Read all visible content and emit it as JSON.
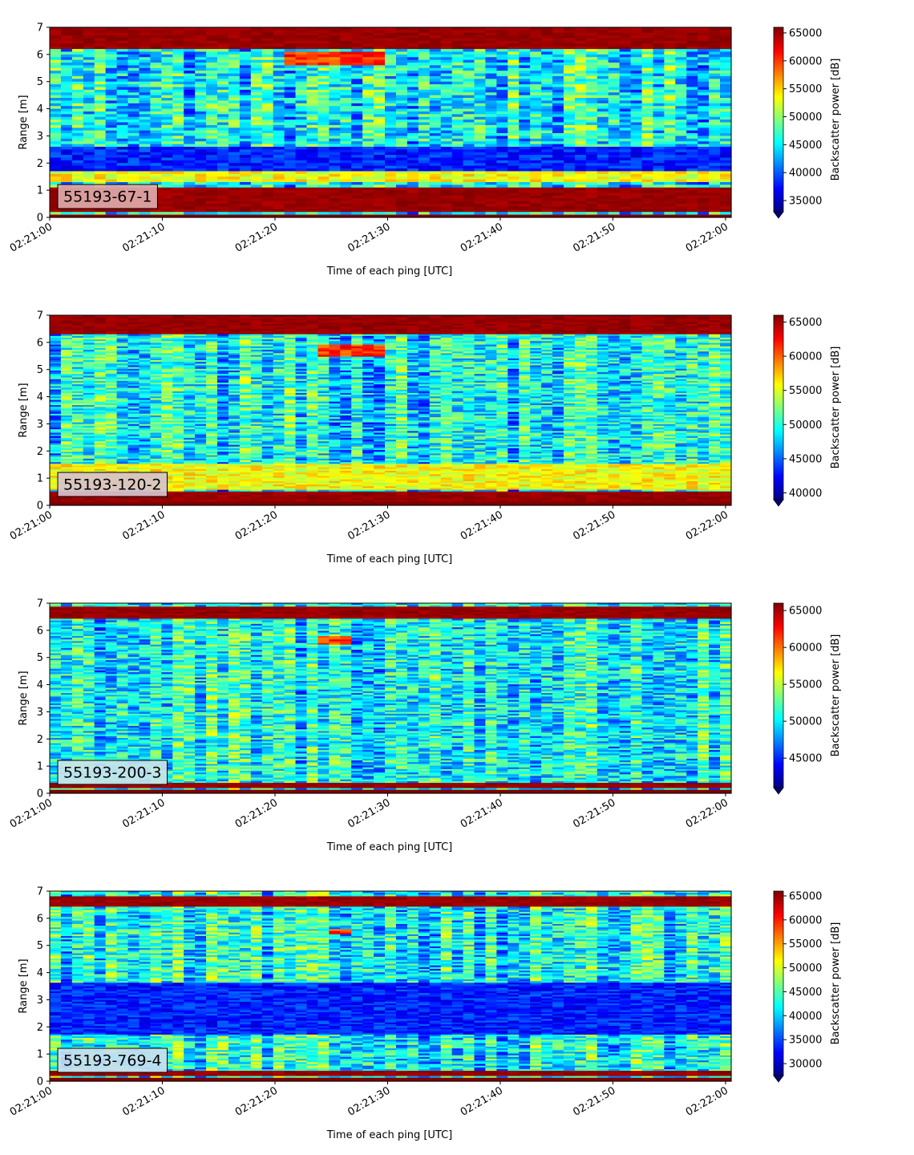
{
  "chart_data": [
    {
      "type": "heatmap",
      "label": "55193-67-1",
      "xlabel": "Time of each ping [UTC]",
      "ylabel": "Range [m]",
      "x_ticks": [
        "02:21:00",
        "02:21:10",
        "02:21:20",
        "02:21:30",
        "02:21:40",
        "02:21:50",
        "02:22:00"
      ],
      "xlim": [
        0,
        60.5
      ],
      "y_ticks": [
        0,
        1,
        2,
        3,
        4,
        5,
        6,
        7
      ],
      "ylim": [
        0,
        7
      ],
      "colorbar": {
        "label": "Backscatter power [dB]",
        "ticks": [
          35000,
          40000,
          45000,
          50000,
          55000,
          60000,
          65000
        ],
        "range": [
          33000,
          66000
        ],
        "extend": "min",
        "colormap": "jet"
      },
      "label_box_color": "#e0a9a9",
      "features": [
        {
          "range_m": [
            0.2,
            1.1
          ],
          "level": "max"
        },
        {
          "range_m": [
            6.2,
            7.0
          ],
          "level": "max"
        },
        {
          "range_m": [
            1.3,
            1.9
          ],
          "level": "mid-high"
        },
        {
          "range_m": [
            1.7,
            2.6
          ],
          "level": "min"
        },
        {
          "range_m": [
            5.6,
            6.1
          ],
          "t_s": [
            21,
            30
          ],
          "level": "high"
        }
      ]
    },
    {
      "type": "heatmap",
      "label": "55193-120-2",
      "xlabel": "Time of each ping [UTC]",
      "ylabel": "Range [m]",
      "x_ticks": [
        "02:21:00",
        "02:21:10",
        "02:21:20",
        "02:21:30",
        "02:21:40",
        "02:21:50",
        "02:22:00"
      ],
      "xlim": [
        0,
        60.5
      ],
      "y_ticks": [
        0,
        1,
        2,
        3,
        4,
        5,
        6,
        7
      ],
      "ylim": [
        0,
        7
      ],
      "colorbar": {
        "label": "Backscatter power [dB]",
        "ticks": [
          40000,
          45000,
          50000,
          55000,
          60000,
          65000
        ],
        "range": [
          39000,
          66000
        ],
        "extend": "min",
        "colormap": "jet"
      },
      "label_box_color": "#d8c2cc",
      "features": [
        {
          "range_m": [
            0.1,
            0.5
          ],
          "level": "max"
        },
        {
          "range_m": [
            6.3,
            7.0
          ],
          "level": "max"
        },
        {
          "range_m": [
            0.6,
            1.5
          ],
          "level": "mid-high"
        },
        {
          "range_m": [
            5.5,
            5.9
          ],
          "t_s": [
            24,
            30
          ],
          "level": "high"
        }
      ]
    },
    {
      "type": "heatmap",
      "label": "55193-200-3",
      "xlabel": "Time of each ping [UTC]",
      "ylabel": "Range [m]",
      "x_ticks": [
        "02:21:00",
        "02:21:10",
        "02:21:20",
        "02:21:30",
        "02:21:40",
        "02:21:50",
        "02:22:00"
      ],
      "xlim": [
        0,
        60.5
      ],
      "y_ticks": [
        0,
        1,
        2,
        3,
        4,
        5,
        6,
        7
      ],
      "ylim": [
        0,
        7
      ],
      "colorbar": {
        "label": "Backscatter power [dB]",
        "ticks": [
          45000,
          50000,
          55000,
          60000,
          65000
        ],
        "range": [
          41000,
          66000
        ],
        "extend": "min",
        "colormap": "jet"
      },
      "label_box_color": "#c8e4ea",
      "features": [
        {
          "range_m": [
            0.2,
            0.4
          ],
          "level": "max"
        },
        {
          "range_m": [
            6.4,
            6.9
          ],
          "level": "max"
        },
        {
          "range_m": [
            5.5,
            5.8
          ],
          "t_s": [
            24,
            27
          ],
          "level": "high"
        }
      ]
    },
    {
      "type": "heatmap",
      "label": "55193-769-4",
      "xlabel": "Time of each ping [UTC]",
      "ylabel": "Range [m]",
      "x_ticks": [
        "02:21:00",
        "02:21:10",
        "02:21:20",
        "02:21:30",
        "02:21:40",
        "02:21:50",
        "02:22:00"
      ],
      "xlim": [
        0,
        60.5
      ],
      "y_ticks": [
        0,
        1,
        2,
        3,
        4,
        5,
        6,
        7
      ],
      "ylim": [
        0,
        7
      ],
      "colorbar": {
        "label": "Backscatter power [dB]",
        "ticks": [
          30000,
          35000,
          40000,
          45000,
          50000,
          55000,
          60000,
          65000
        ],
        "range": [
          27500,
          66000
        ],
        "extend": "min",
        "colormap": "jet"
      },
      "label_box_color": "#c8dff0",
      "features": [
        {
          "range_m": [
            0.2,
            0.35
          ],
          "level": "max"
        },
        {
          "range_m": [
            6.4,
            6.8
          ],
          "level": "max"
        },
        {
          "range_m": [
            1.7,
            3.6
          ],
          "level": "min"
        },
        {
          "range_m": [
            5.4,
            5.6
          ],
          "t_s": [
            25,
            27
          ],
          "level": "high"
        }
      ]
    }
  ]
}
